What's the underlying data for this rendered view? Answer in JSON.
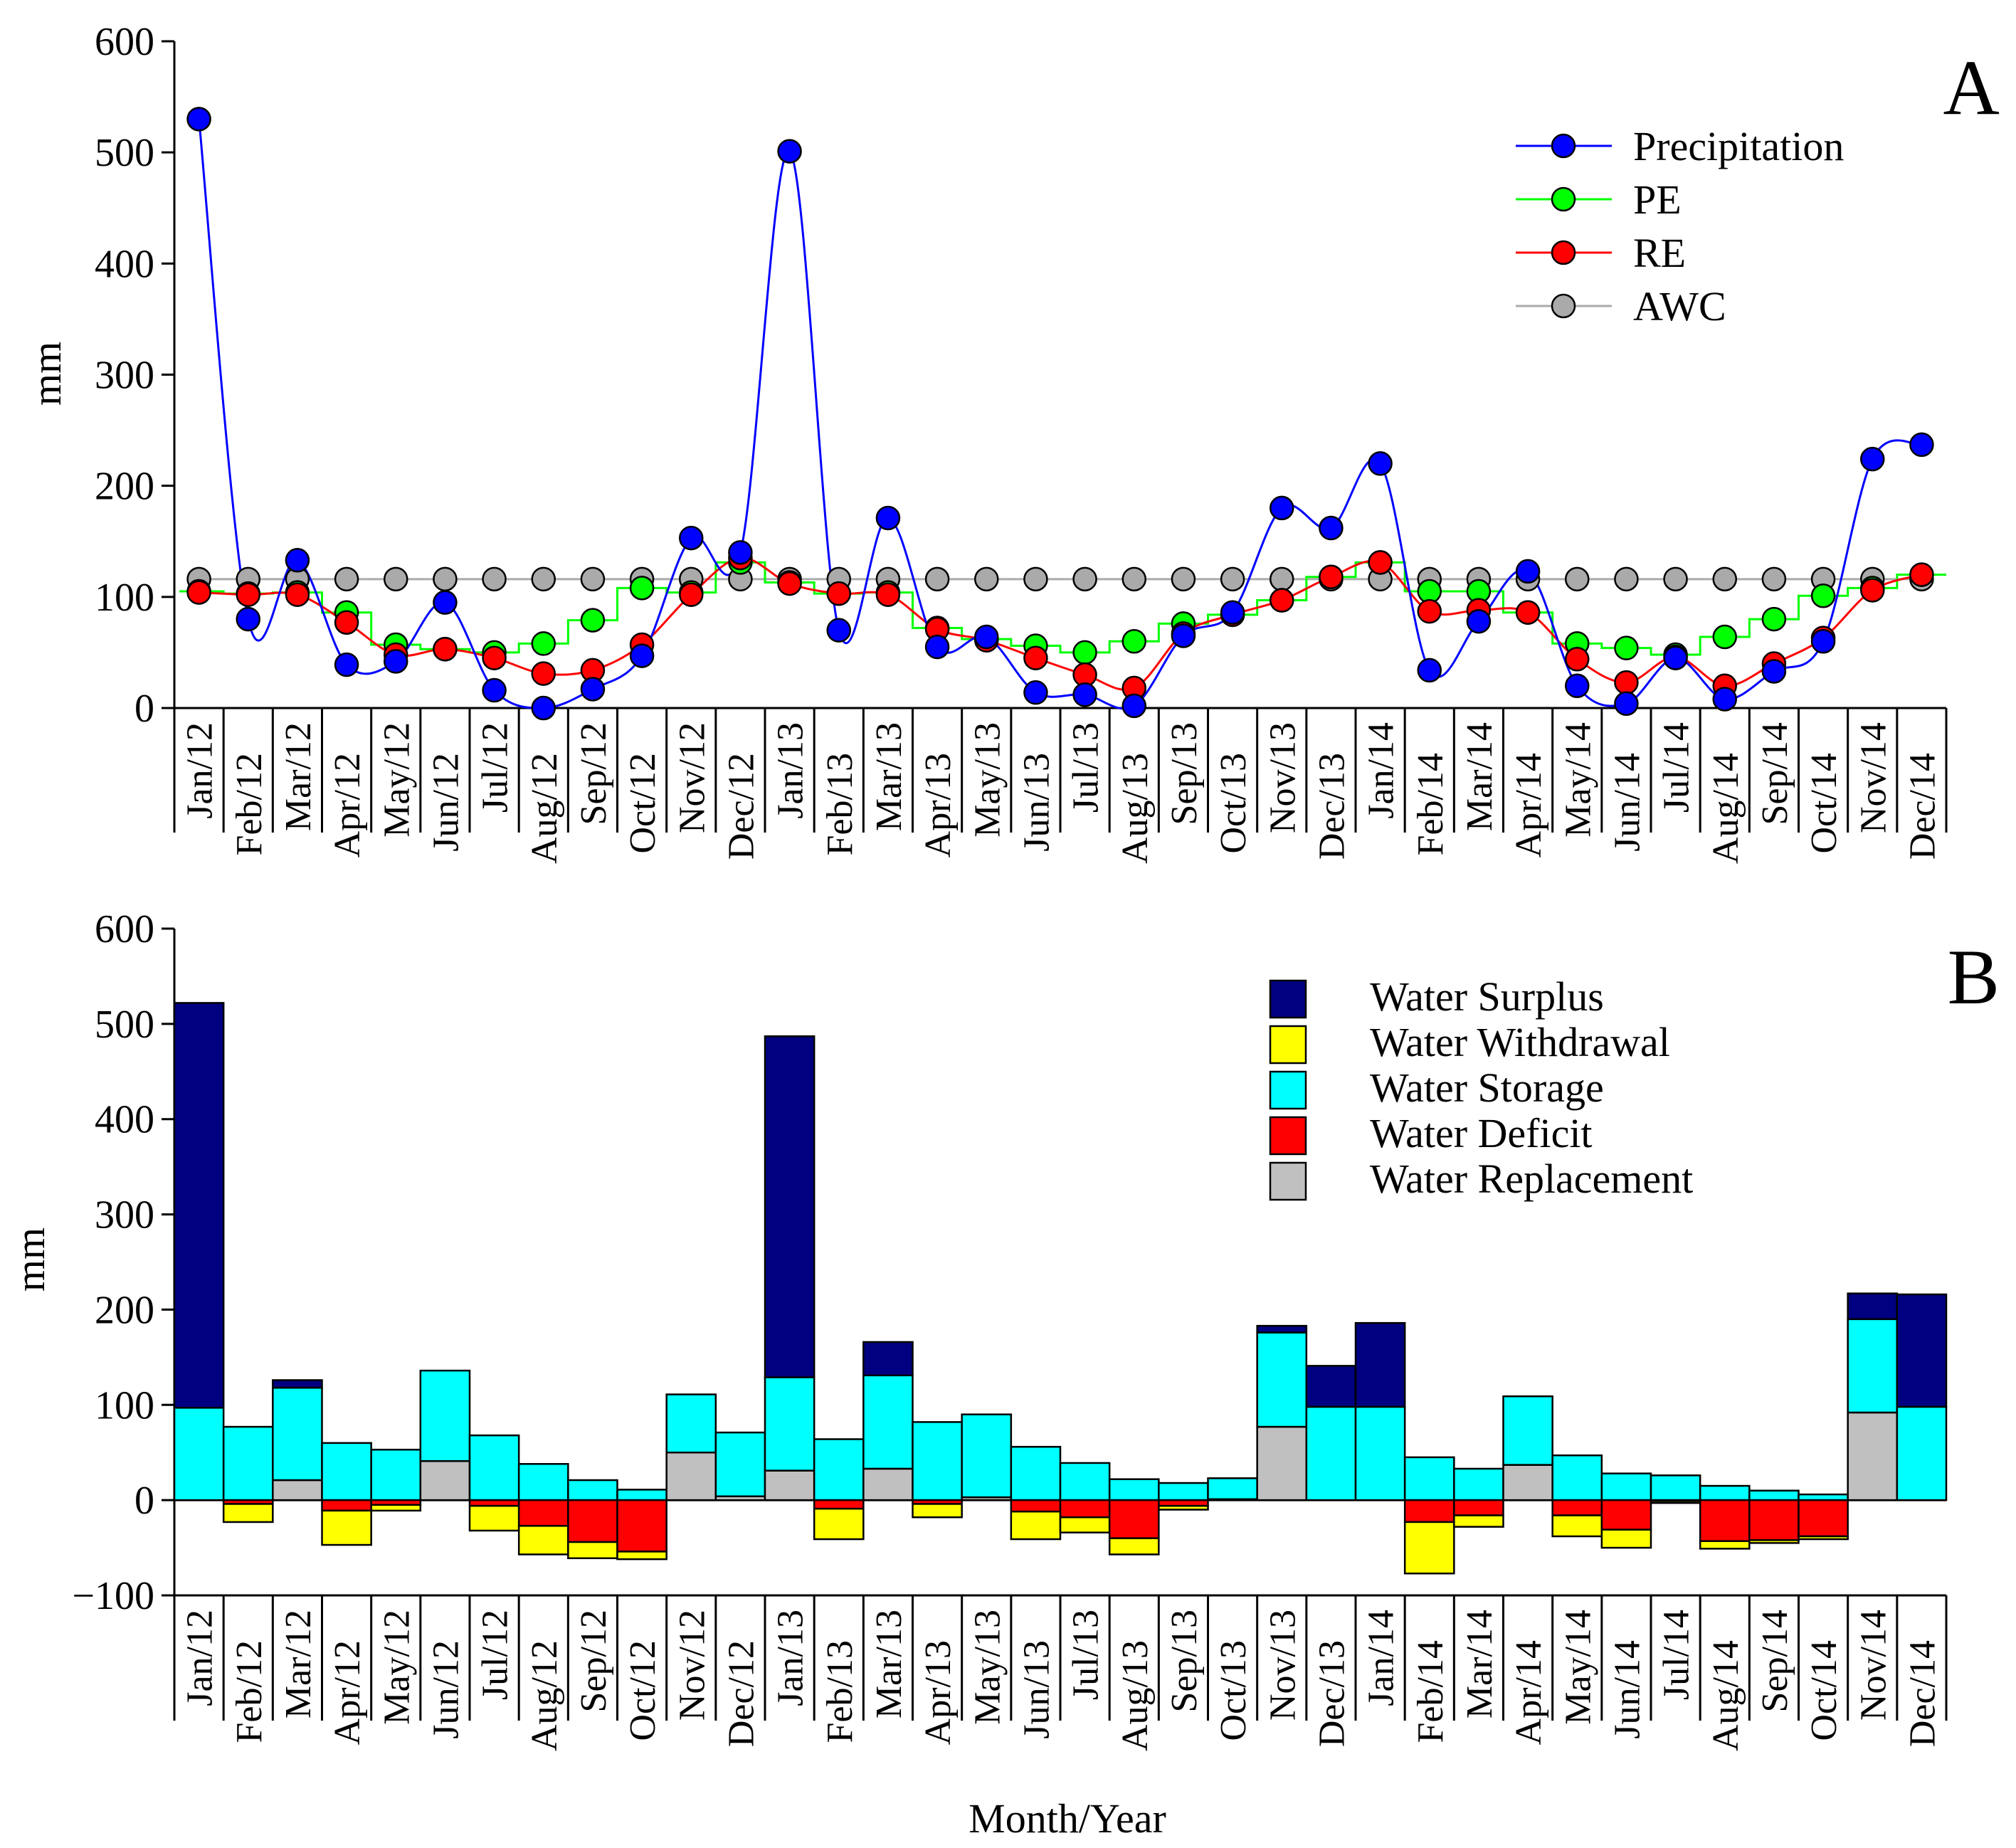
{
  "figure": {
    "xlabel": "Month/Year"
  },
  "chart_data": [
    {
      "type": "line",
      "panel_letter": "A",
      "ylabel": "mm",
      "ylim": [
        0,
        600
      ],
      "yticks": [
        "0",
        "100",
        "200",
        "300",
        "400",
        "500",
        "600"
      ],
      "categories": [
        "Jan/12",
        "Feb/12",
        "Mar/12",
        "Apr/12",
        "May/12",
        "Jun/12",
        "Jul/12",
        "Aug/12",
        "Sep/12",
        "Oct/12",
        "Nov/12",
        "Dec/12",
        "Jan/13",
        "Feb/13",
        "Mar/13",
        "Apr/13",
        "May/13",
        "Jun/13",
        "Jul/13",
        "Aug/13",
        "Sep/13",
        "Oct/13",
        "Nov/13",
        "Dec/13",
        "Jan/14",
        "Feb/14",
        "Mar/14",
        "Apr/14",
        "May/14",
        "Jun/14",
        "Jul/14",
        "Aug/14",
        "Sep/14",
        "Oct/14",
        "Nov/14",
        "Dec/14"
      ],
      "legend_position": "top-right",
      "series": [
        {
          "name": "Precipitation",
          "color": "#0000ff",
          "line": "smooth",
          "values": [
            530,
            80,
            133,
            39,
            42,
            95,
            16,
            0,
            17,
            47,
            153,
            140,
            501,
            70,
            171,
            55,
            64,
            14,
            12,
            2,
            65,
            86,
            180,
            162,
            220,
            34,
            78,
            123,
            20,
            4,
            45,
            8,
            33,
            60,
            224,
            237
          ]
        },
        {
          "name": "PE",
          "color": "#00ff00",
          "line": "step",
          "values": [
            105,
            103,
            104,
            86,
            57,
            53,
            50,
            58,
            79,
            108,
            104,
            131,
            113,
            103,
            104,
            72,
            62,
            56,
            50,
            60,
            76,
            84,
            97,
            118,
            131,
            105,
            105,
            86,
            58,
            54,
            48,
            64,
            80,
            101,
            108,
            120
          ]
        },
        {
          "name": "RE",
          "color": "#ff0000",
          "line": "smooth",
          "values": [
            104,
            102,
            102,
            77,
            48,
            53,
            45,
            31,
            34,
            57,
            102,
            135,
            112,
            103,
            102,
            71,
            61,
            45,
            30,
            18,
            67,
            84,
            97,
            118,
            131,
            87,
            88,
            86,
            44,
            23,
            46,
            20,
            40,
            63,
            106,
            120
          ]
        },
        {
          "name": "AWC",
          "color": "#aaaaaa",
          "line": "straight",
          "values": [
            116,
            116,
            116,
            116,
            116,
            116,
            116,
            116,
            116,
            116,
            116,
            116,
            116,
            116,
            116,
            116,
            116,
            116,
            116,
            116,
            116,
            116,
            116,
            116,
            116,
            116,
            116,
            116,
            116,
            116,
            116,
            116,
            116,
            116,
            116,
            116
          ]
        }
      ]
    },
    {
      "type": "bar",
      "stacked": true,
      "panel_letter": "B",
      "ylabel": "mm",
      "ylim": [
        -100,
        600
      ],
      "yticks": [
        "−100",
        "0",
        "100",
        "200",
        "300",
        "400",
        "500",
        "600"
      ],
      "categories": [
        "Jan/12",
        "Feb/12",
        "Mar/12",
        "Apr/12",
        "May/12",
        "Jun/12",
        "Jul/12",
        "Aug/12",
        "Sep/12",
        "Oct/12",
        "Nov/12",
        "Dec/12",
        "Jan/13",
        "Feb/13",
        "Mar/13",
        "Apr/13",
        "May/13",
        "Jun/13",
        "Jul/13",
        "Aug/13",
        "Sep/13",
        "Oct/13",
        "Nov/13",
        "Dec/13",
        "Jan/14",
        "Feb/14",
        "Mar/14",
        "Apr/14",
        "May/14",
        "Jun/14",
        "Jul/14",
        "Aug/14",
        "Sep/14",
        "Oct/14",
        "Nov/14",
        "Dec/14"
      ],
      "legend_position": "top-right",
      "series": [
        {
          "name": "Water Surplus",
          "color": "#000080",
          "values": [
            425,
            0,
            8,
            0,
            0,
            0,
            0,
            0,
            0,
            0,
            0,
            0,
            358,
            0,
            35,
            0,
            0,
            0,
            0,
            0,
            0,
            0,
            7,
            43,
            88,
            0,
            0,
            0,
            0,
            0,
            0,
            0,
            0,
            0,
            27,
            118
          ]
        },
        {
          "name": "Water Withdrawal",
          "color": "#ffff00",
          "values": [
            0,
            -19,
            0,
            -36,
            -6,
            0,
            -26,
            -30,
            -17,
            -8,
            0,
            0,
            0,
            -32,
            0,
            -14,
            0,
            -29,
            -16,
            -17,
            -4,
            0,
            0,
            0,
            0,
            -54,
            -12,
            0,
            -22,
            -19,
            -2,
            -8,
            -3,
            -3,
            0,
            0
          ]
        },
        {
          "name": "Water Storage",
          "color": "#00ffff",
          "values": [
            97,
            77,
            97,
            60,
            53,
            95,
            68,
            38,
            21,
            11,
            61,
            67,
            98,
            64,
            98,
            82,
            87,
            56,
            39,
            22,
            18,
            22,
            99,
            98,
            98,
            45,
            33,
            72,
            47,
            28,
            26,
            15,
            10,
            6,
            98,
            98
          ]
        },
        {
          "name": "Water Deficit",
          "color": "#ff0000",
          "values": [
            0,
            -4,
            0,
            -11,
            -5,
            0,
            -6,
            -27,
            -44,
            -54,
            0,
            0,
            0,
            -9,
            0,
            -4,
            0,
            -12,
            -18,
            -40,
            -6,
            0,
            0,
            0,
            0,
            -23,
            -16,
            0,
            -16,
            -31,
            -1,
            -43,
            -42,
            -38,
            0,
            0
          ]
        },
        {
          "name": "Water Replacement",
          "color": "#c0c0c0",
          "values": [
            0,
            0,
            21,
            0,
            0,
            41,
            0,
            0,
            0,
            0,
            50,
            4,
            31,
            0,
            33,
            0,
            3,
            0,
            0,
            0,
            0,
            1,
            77,
            0,
            0,
            0,
            0,
            37,
            0,
            0,
            0,
            0,
            0,
            0,
            92,
            0
          ]
        }
      ]
    }
  ]
}
